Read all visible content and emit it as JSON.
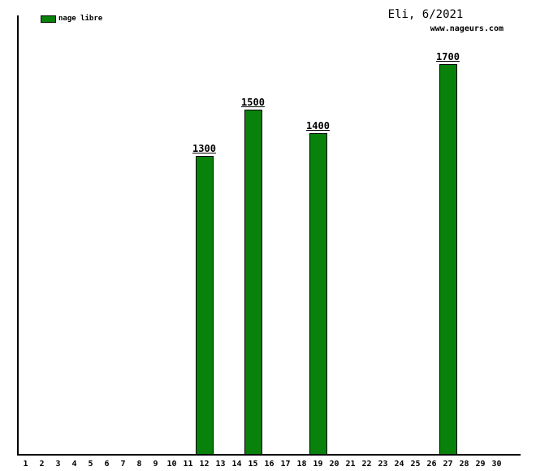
{
  "header": {
    "title": "Eli, 6/2021",
    "watermark": "www.nageurs.com"
  },
  "chart_data": {
    "type": "bar",
    "title": "Eli, 6/2021",
    "watermark": "www.nageurs.com",
    "legend": [
      {
        "name": "nage libre",
        "color": "#08820a"
      }
    ],
    "legend_position": "top-left",
    "grid": false,
    "x": [
      1,
      2,
      3,
      4,
      5,
      6,
      7,
      8,
      9,
      10,
      11,
      12,
      13,
      14,
      15,
      16,
      17,
      18,
      19,
      20,
      21,
      22,
      23,
      24,
      25,
      26,
      27,
      28,
      29,
      30
    ],
    "values": [
      null,
      null,
      null,
      null,
      null,
      null,
      null,
      null,
      null,
      null,
      null,
      1300,
      null,
      null,
      1500,
      null,
      null,
      null,
      1400,
      null,
      null,
      null,
      null,
      null,
      null,
      null,
      1700,
      null,
      null,
      null
    ],
    "points": [
      {
        "day": 12,
        "value": 1300
      },
      {
        "day": 15,
        "value": 1500
      },
      {
        "day": 19,
        "value": 1400
      },
      {
        "day": 27,
        "value": 1700
      }
    ],
    "bar_value_labels": true,
    "axis_color": "#000000",
    "ylim": [
      0,
      1910
    ]
  }
}
